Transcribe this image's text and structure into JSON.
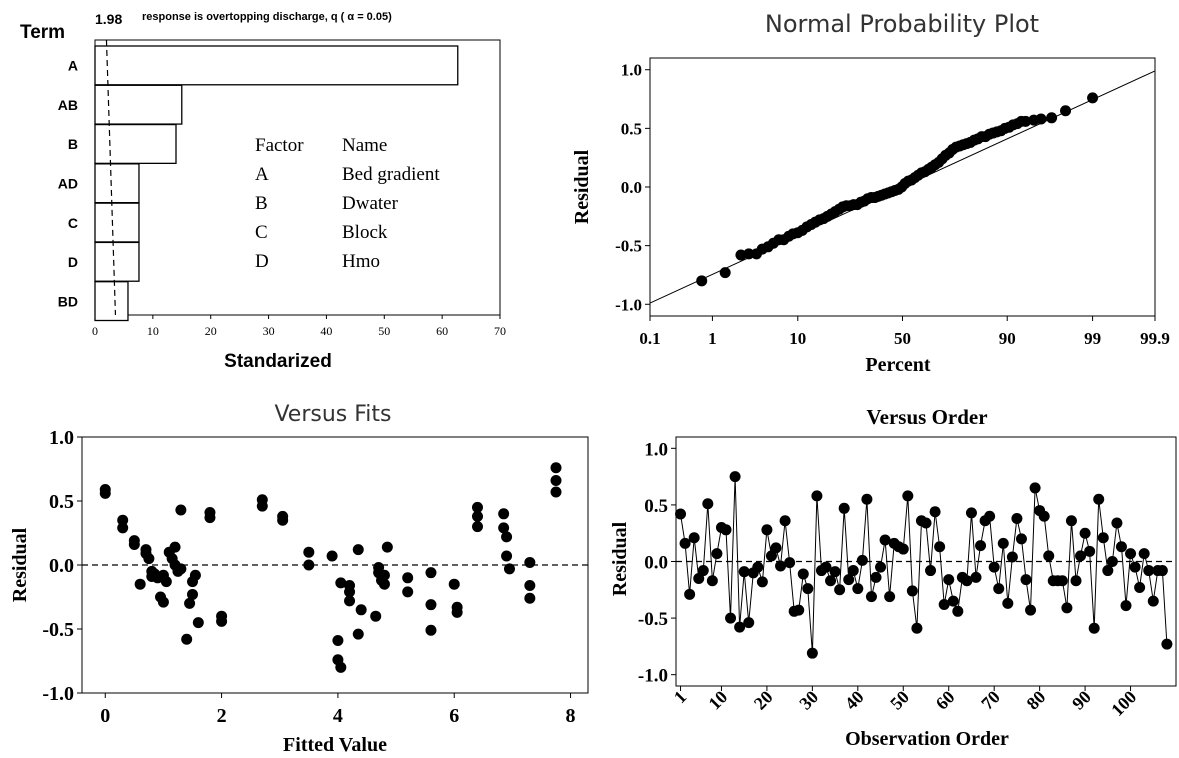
{
  "pareto": {
    "type": "bar",
    "header_term": "Term",
    "ref_value_label": "1.98",
    "title": "response is overtopping discharge, q ( α = 0.05)",
    "categories": [
      "A",
      "AB",
      "B",
      "AD",
      "C",
      "D",
      "BD"
    ],
    "values": [
      62.7,
      15.0,
      14.0,
      7.6,
      7.6,
      7.6,
      5.7
    ],
    "reference_line": 1.98,
    "xlabel": "Standarized",
    "xlim": [
      0,
      70
    ],
    "xticks": [
      "0",
      "10",
      "20",
      "30",
      "40",
      "50",
      "60",
      "70"
    ],
    "legend": {
      "header_factor": "Factor",
      "header_name": "Name",
      "rows": [
        {
          "factor": "A",
          "name": "Bed gradient"
        },
        {
          "factor": "B",
          "name": "Dwater"
        },
        {
          "factor": "C",
          "name": "Block"
        },
        {
          "factor": "D",
          "name": "Hmo"
        }
      ]
    }
  },
  "chart_data": [
    {
      "type": "scatter",
      "title": "Normal Probability Plot",
      "xlabel": "Percent",
      "ylabel": "Residual",
      "xscale": "normal-probability",
      "xticks": [
        "0.1",
        "1",
        "10",
        "50",
        "90",
        "99",
        "99.9"
      ],
      "yticks": [
        "-1.0",
        "-0.5",
        "0.0",
        "0.5",
        "1.0"
      ],
      "ylim": [
        -1.1,
        1.1
      ],
      "fit_line": {
        "y_at_p0_1": -0.99,
        "y_at_p99_9": 0.99
      },
      "x": [
        0.7,
        1.5,
        2.4,
        3.0,
        3.7,
        4.3,
        5.0,
        5.7,
        6.5,
        7.3,
        8.2,
        9.0,
        10.0,
        11.0,
        12.1,
        13.2,
        14.3,
        15.5,
        16.7,
        17.9,
        19.2,
        20.5,
        21.9,
        23.2,
        24.6,
        26.1,
        27.5,
        29.0,
        30.5,
        32.0,
        33.5,
        35.1,
        36.7,
        38.3,
        39.9,
        41.5,
        43.1,
        44.7,
        46.3,
        48.0,
        49.6,
        51.2,
        52.8,
        54.4,
        56.0,
        57.6,
        59.2,
        60.8,
        62.4,
        64.0,
        65.5,
        67.1,
        68.6,
        70.1,
        71.6,
        73.0,
        74.4,
        75.8,
        77.1,
        78.4,
        79.7,
        81.0,
        82.2,
        83.4,
        84.5,
        85.6,
        86.6,
        87.6,
        88.6,
        89.5,
        90.4,
        91.2,
        92.0,
        92.7,
        93.4,
        94.6,
        95.5,
        96.6,
        97.7,
        99.0
      ],
      "y": [
        -0.8,
        -0.73,
        -0.58,
        -0.57,
        -0.57,
        -0.53,
        -0.51,
        -0.48,
        -0.45,
        -0.45,
        -0.42,
        -0.4,
        -0.39,
        -0.37,
        -0.34,
        -0.32,
        -0.3,
        -0.28,
        -0.27,
        -0.25,
        -0.23,
        -0.21,
        -0.19,
        -0.17,
        -0.16,
        -0.16,
        -0.15,
        -0.15,
        -0.13,
        -0.12,
        -0.1,
        -0.09,
        -0.09,
        -0.08,
        -0.07,
        -0.06,
        -0.05,
        -0.04,
        -0.03,
        -0.02,
        0.0,
        0.03,
        0.05,
        0.06,
        0.08,
        0.1,
        0.12,
        0.13,
        0.15,
        0.17,
        0.19,
        0.21,
        0.24,
        0.27,
        0.29,
        0.32,
        0.34,
        0.35,
        0.36,
        0.37,
        0.38,
        0.4,
        0.41,
        0.43,
        0.43,
        0.45,
        0.46,
        0.47,
        0.48,
        0.5,
        0.51,
        0.53,
        0.54,
        0.56,
        0.56,
        0.57,
        0.58,
        0.59,
        0.65,
        0.76
      ]
    },
    {
      "type": "scatter",
      "title": "Versus Fits",
      "xlabel": "Fitted Value",
      "ylabel": "Residual",
      "xlim": [
        -0.4,
        8.3
      ],
      "ylim": [
        -1.0,
        1.0
      ],
      "xticks": [
        "0",
        "2",
        "4",
        "6",
        "8"
      ],
      "yticks": [
        "-1.0",
        "-0.5",
        "0.0",
        "0.5",
        "1.0"
      ],
      "reference_line": 0,
      "x": [
        0.0,
        0.0,
        0.3,
        0.3,
        0.5,
        0.5,
        0.6,
        0.7,
        0.7,
        0.75,
        0.8,
        0.8,
        0.85,
        0.9,
        0.95,
        1.0,
        1.0,
        1.05,
        1.1,
        1.15,
        1.2,
        1.2,
        1.25,
        1.3,
        1.3,
        1.4,
        1.45,
        1.5,
        1.5,
        1.55,
        1.6,
        1.8,
        1.8,
        2.0,
        2.0,
        2.7,
        2.7,
        3.05,
        3.05,
        3.5,
        3.5,
        3.9,
        4.0,
        4.0,
        4.05,
        4.05,
        4.2,
        4.2,
        4.2,
        4.35,
        4.35,
        4.4,
        4.65,
        4.7,
        4.7,
        4.75,
        4.8,
        4.8,
        4.85,
        5.2,
        5.2,
        5.6,
        5.6,
        5.6,
        6.0,
        6.05,
        6.05,
        6.4,
        6.4,
        6.4,
        6.85,
        6.85,
        6.9,
        6.9,
        6.95,
        7.3,
        7.3,
        7.3,
        7.75,
        7.75,
        7.75
      ],
      "y": [
        0.59,
        0.56,
        0.35,
        0.29,
        0.19,
        0.16,
        -0.15,
        0.12,
        0.09,
        0.05,
        -0.05,
        -0.09,
        -0.07,
        -0.1,
        -0.25,
        -0.29,
        -0.08,
        -0.13,
        0.1,
        0.05,
        0.14,
        0.0,
        -0.05,
        0.43,
        -0.03,
        -0.58,
        -0.3,
        -0.23,
        -0.13,
        -0.08,
        -0.45,
        0.41,
        0.37,
        -0.4,
        -0.44,
        0.51,
        0.46,
        0.38,
        0.35,
        0.1,
        0.0,
        0.07,
        -0.59,
        -0.74,
        -0.8,
        -0.14,
        -0.16,
        -0.21,
        -0.28,
        0.12,
        -0.54,
        -0.35,
        -0.4,
        -0.02,
        -0.06,
        -0.12,
        -0.08,
        -0.15,
        0.14,
        -0.1,
        -0.21,
        -0.06,
        -0.31,
        -0.51,
        -0.15,
        -0.33,
        -0.37,
        0.45,
        0.38,
        0.3,
        0.4,
        0.29,
        0.22,
        0.07,
        -0.03,
        0.02,
        -0.16,
        -0.26,
        0.76,
        0.66,
        0.57
      ]
    },
    {
      "type": "line",
      "title": "Versus Order",
      "xlabel": "Observation Order",
      "ylabel": "Residual",
      "xlim": [
        0,
        110
      ],
      "ylim": [
        -1.1,
        1.1
      ],
      "xticks": [
        "1",
        "10",
        "20",
        "30",
        "40",
        "50",
        "60",
        "70",
        "80",
        "90",
        "100"
      ],
      "yticks": [
        "-1.0",
        "-0.5",
        "0.0",
        "0.5",
        "1.0"
      ],
      "reference_line": 0,
      "y": [
        0.42,
        0.16,
        -0.29,
        0.21,
        -0.15,
        -0.08,
        0.51,
        -0.17,
        0.07,
        0.3,
        0.28,
        -0.5,
        0.75,
        -0.58,
        -0.09,
        -0.54,
        -0.1,
        -0.05,
        -0.18,
        0.28,
        0.05,
        0.12,
        -0.04,
        0.36,
        -0.01,
        -0.44,
        -0.43,
        -0.11,
        -0.24,
        -0.81,
        0.58,
        -0.08,
        -0.05,
        -0.17,
        -0.09,
        -0.25,
        0.47,
        -0.16,
        -0.08,
        -0.24,
        0.01,
        0.55,
        -0.31,
        -0.14,
        -0.05,
        0.19,
        -0.31,
        0.16,
        0.13,
        0.11,
        0.58,
        -0.26,
        -0.59,
        0.36,
        0.34,
        -0.08,
        0.44,
        0.13,
        -0.38,
        -0.16,
        -0.35,
        -0.44,
        -0.14,
        -0.17,
        0.43,
        -0.14,
        0.14,
        0.36,
        0.4,
        -0.05,
        -0.24,
        0.16,
        -0.37,
        0.04,
        0.38,
        0.2,
        -0.16,
        -0.43,
        0.65,
        0.45,
        0.4,
        0.05,
        -0.17,
        -0.17,
        -0.17,
        -0.41,
        0.36,
        -0.17,
        0.05,
        0.25,
        0.09,
        -0.59,
        0.55,
        0.21,
        -0.08,
        0.0,
        0.34,
        0.13,
        -0.39,
        0.07,
        -0.05,
        -0.23,
        0.07,
        -0.08,
        -0.35,
        -0.08,
        -0.08,
        -0.73
      ]
    }
  ]
}
